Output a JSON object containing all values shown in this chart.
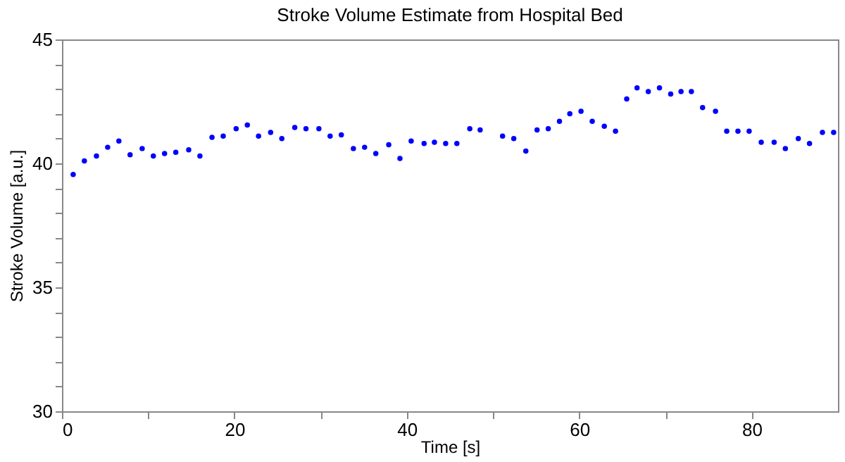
{
  "chart_data": {
    "type": "scatter",
    "title": "Stroke Volume Estimate from Hospital Bed",
    "xlabel": "Time [s]",
    "ylabel": "Stroke Volume [a.u.]",
    "x": [
      1.3,
      2.6,
      4.0,
      5.3,
      6.6,
      7.9,
      9.3,
      10.6,
      11.9,
      13.2,
      14.7,
      16.0,
      17.4,
      18.7,
      20.2,
      21.5,
      22.8,
      24.2,
      25.5,
      27.0,
      28.3,
      29.8,
      31.1,
      32.4,
      33.8,
      35.1,
      36.4,
      37.9,
      39.2,
      40.5,
      42.0,
      43.2,
      44.5,
      45.8,
      47.3,
      48.5,
      51.1,
      52.4,
      53.8,
      55.1,
      56.4,
      57.7,
      58.9,
      60.2,
      61.5,
      62.9,
      64.2,
      65.5,
      66.7,
      68.0,
      69.3,
      70.6,
      71.8,
      73.0,
      74.3,
      75.8,
      77.1,
      78.4,
      79.7,
      81.1,
      82.6,
      83.9,
      85.4,
      86.7,
      88.2,
      89.5
    ],
    "series": [
      {
        "color": "#0000ff",
        "values": [
          39.55,
          40.1,
          40.3,
          40.65,
          40.9,
          40.35,
          40.6,
          40.3,
          40.4,
          40.45,
          40.55,
          40.3,
          41.05,
          41.1,
          41.4,
          41.55,
          41.1,
          41.25,
          41.0,
          41.45,
          41.4,
          41.4,
          41.1,
          41.15,
          40.6,
          40.65,
          40.4,
          40.75,
          40.2,
          40.9,
          40.8,
          40.85,
          40.8,
          40.8,
          41.4,
          41.35,
          41.1,
          41.0,
          40.5,
          41.35,
          41.4,
          41.7,
          42.0,
          42.1,
          41.7,
          41.5,
          41.3,
          42.6,
          43.05,
          42.9,
          43.05,
          42.8,
          42.9,
          42.9,
          42.25,
          42.1,
          41.3,
          41.3,
          41.3,
          40.85,
          40.85,
          40.6,
          41.0,
          40.8,
          41.25,
          41.25
        ]
      }
    ],
    "xlim": [
      0,
      90
    ],
    "ylim": [
      30,
      45
    ],
    "xticks": [
      0,
      {
        "value": 10,
        "label": null
      },
      20,
      {
        "value": 30,
        "label": null
      },
      40,
      {
        "value": 50,
        "label": null
      },
      60,
      {
        "value": 70,
        "label": null
      },
      80
    ],
    "yticks": [
      30,
      {
        "value": 31,
        "label": null
      },
      {
        "value": 32,
        "label": null
      },
      {
        "value": 33,
        "label": null
      },
      {
        "value": 34,
        "label": null
      },
      35,
      {
        "value": 36,
        "label": null
      },
      {
        "value": 37,
        "label": null
      },
      {
        "value": 38,
        "label": null
      },
      {
        "value": 39,
        "label": null
      },
      40,
      {
        "value": 41,
        "label": null
      },
      {
        "value": 42,
        "label": null
      },
      {
        "value": 43,
        "label": null
      },
      {
        "value": 44,
        "label": null
      },
      45
    ],
    "marker": "circle",
    "grid": false
  }
}
